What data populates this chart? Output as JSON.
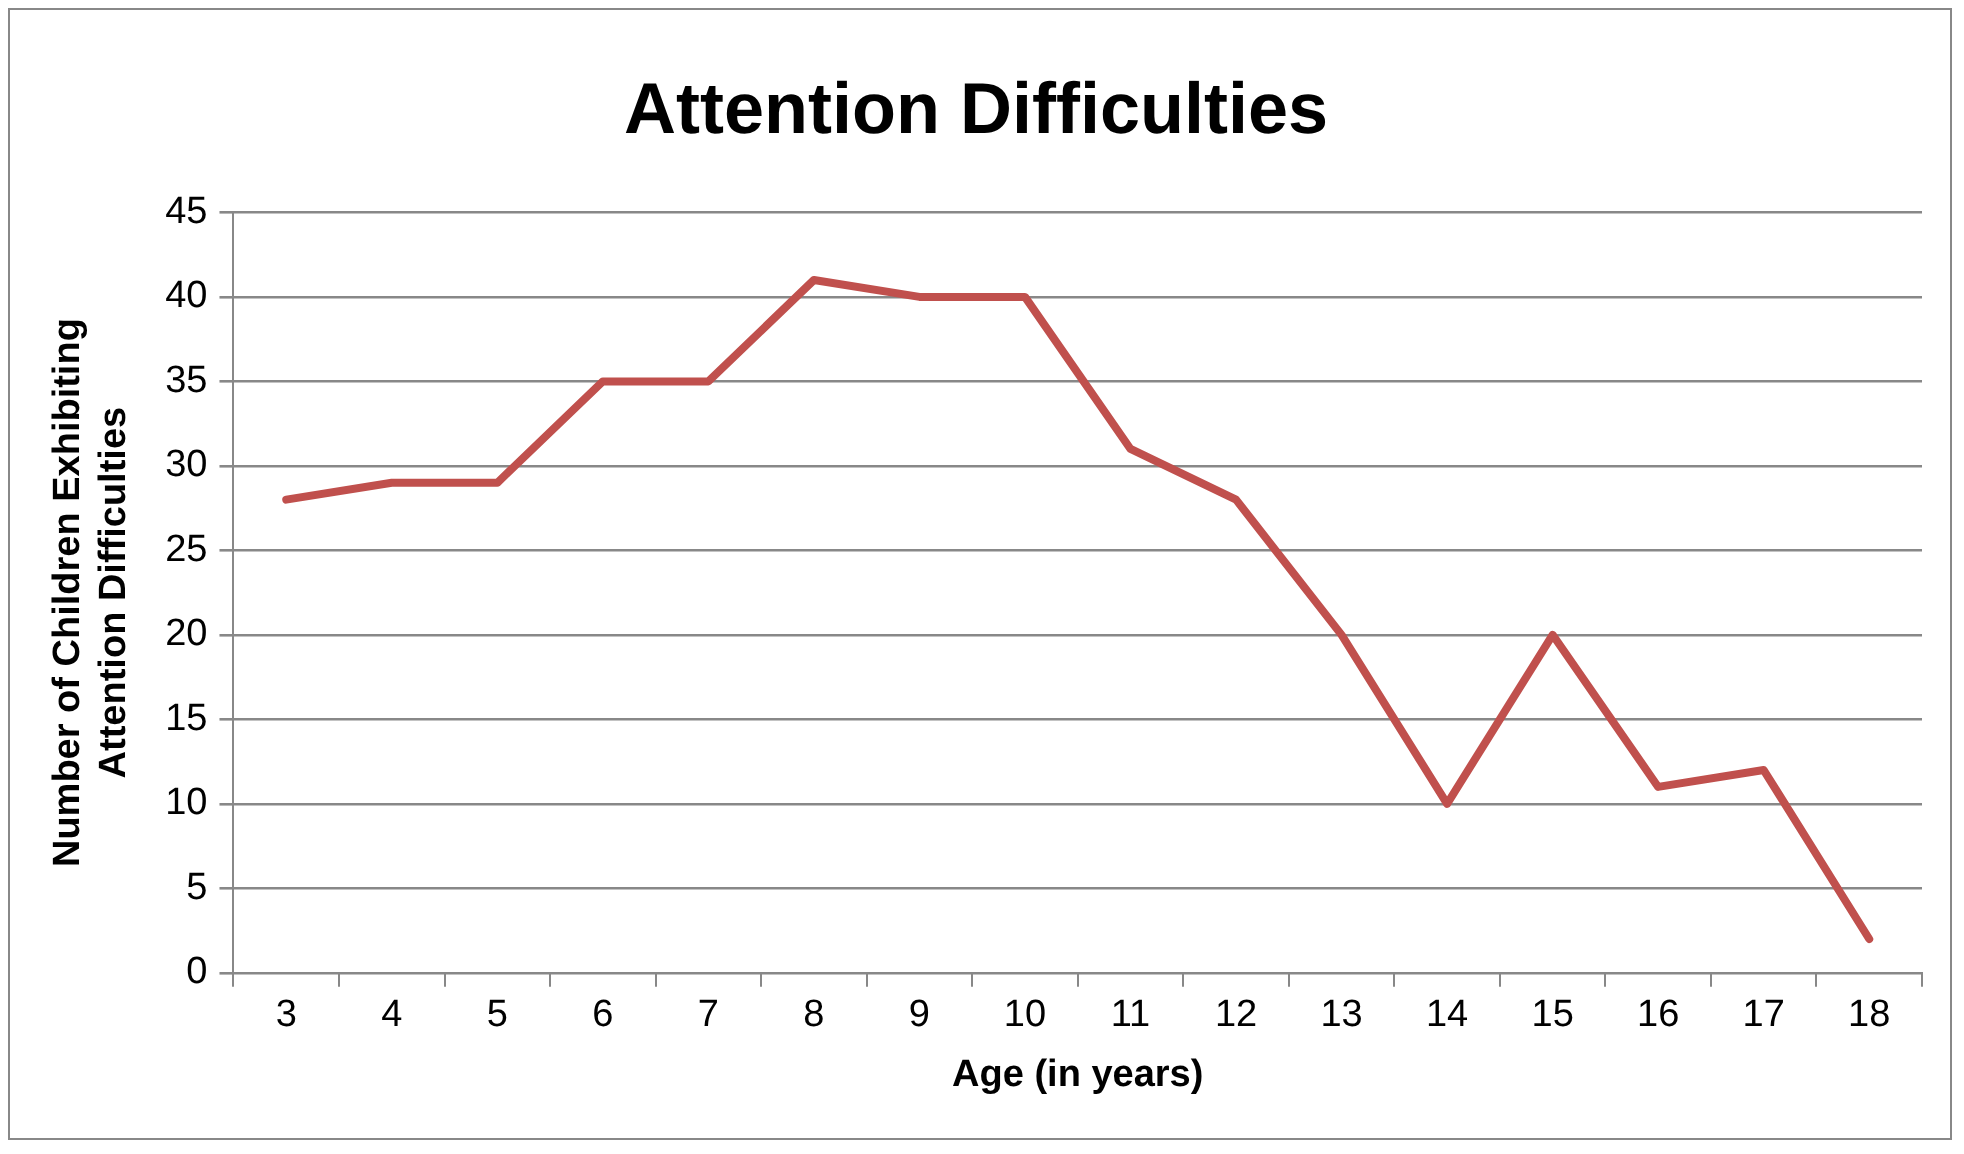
{
  "chart_data": {
    "type": "line",
    "title": "Attention Difficulties",
    "xlabel": "Age (in years)",
    "ylabel": "Number of Children Exhibiting Attention Difficulties",
    "categories": [
      "3",
      "4",
      "5",
      "6",
      "7",
      "8",
      "9",
      "10",
      "11",
      "12",
      "13",
      "14",
      "15",
      "16",
      "17",
      "18"
    ],
    "series": [
      {
        "color": "#c0504d",
        "values": [
          28,
          29,
          29,
          35,
          35,
          41,
          40,
          40,
          31,
          28,
          20,
          10,
          20,
          11,
          12,
          2
        ]
      }
    ],
    "ylim": [
      0,
      45
    ],
    "yticks": [
      0,
      5,
      10,
      15,
      20,
      25,
      30,
      35,
      40,
      45
    ],
    "grid": "y",
    "legend": false,
    "marker": "none",
    "line_style": "solid"
  }
}
